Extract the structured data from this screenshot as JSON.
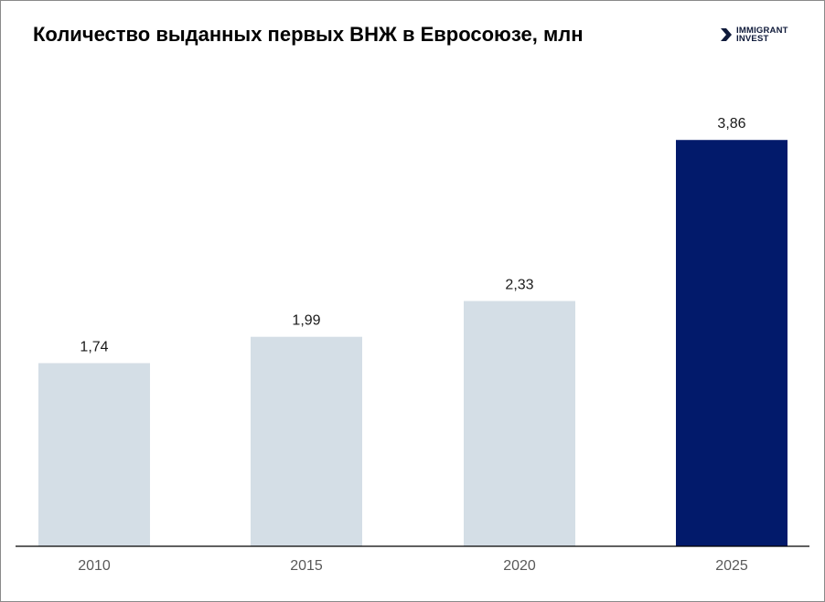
{
  "header": {
    "title": "Количество выданных первых ВНЖ в Евросоюзе, млн",
    "logo_line1": "IMMIGRANT",
    "logo_line2": "INVEST"
  },
  "colors": {
    "bar_default": "#d4dee6",
    "bar_highlight": "#021a6b",
    "axis": "#000000"
  },
  "chart_data": {
    "type": "bar",
    "title": "Количество выданных первых ВНЖ в Евросоюзе, млн",
    "categories": [
      "2010",
      "2015",
      "2020",
      "2025"
    ],
    "values": [
      1.74,
      1.99,
      2.33,
      3.86
    ],
    "labels": [
      "1,74",
      "1,99",
      "2,33",
      "3,86"
    ],
    "highlight_index": 3,
    "ylim": [
      0,
      4.4
    ],
    "grid": false,
    "legend": "none",
    "xlabel": "",
    "ylabel": ""
  }
}
